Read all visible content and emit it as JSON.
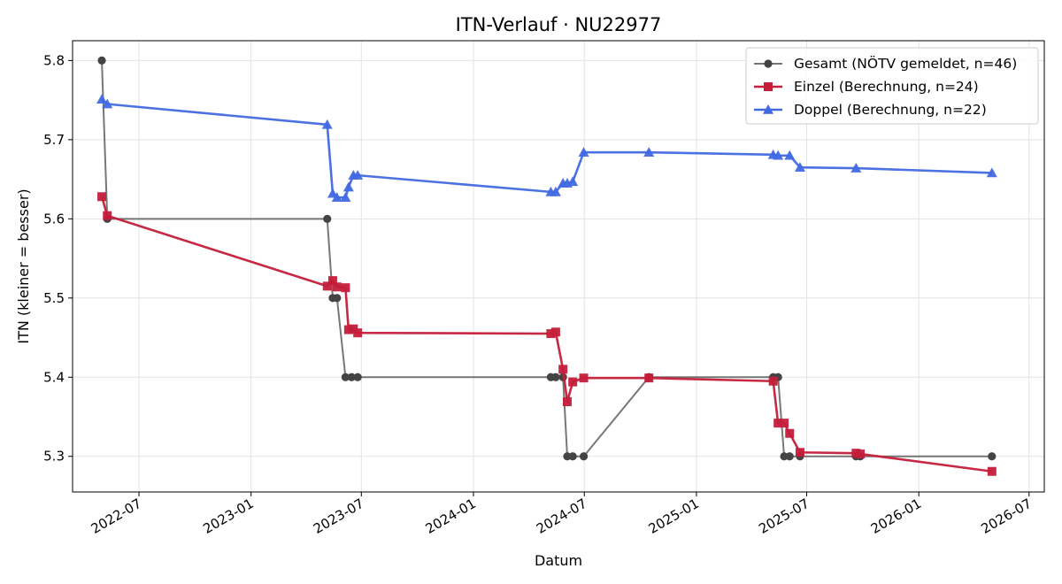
{
  "chart_data": {
    "type": "line",
    "title": "ITN-Verlauf · NU22977",
    "xlabel": "Datum",
    "ylabel": "ITN  (kleiner = besser)",
    "x_ticks": [
      "2022-07",
      "2023-01",
      "2023-07",
      "2024-01",
      "2024-07",
      "2025-01",
      "2025-07",
      "2026-01",
      "2026-07"
    ],
    "y_ticks": [
      "5.3",
      "5.4",
      "5.5",
      "5.6",
      "5.7",
      "5.8"
    ],
    "xlim": [
      "2022-03-14",
      "2026-07-26"
    ],
    "ylim": [
      5.255,
      5.825
    ],
    "grid": true,
    "legend_position": "top-right",
    "series": [
      {
        "name": "Gesamt (NÖTV gemeldet, n=46)",
        "color": "#555555",
        "marker": "circle",
        "points": [
          [
            "2022-05-01",
            5.8
          ],
          [
            "2022-05-10",
            5.6
          ],
          [
            "2023-05-06",
            5.6
          ],
          [
            "2023-05-15",
            5.5
          ],
          [
            "2023-05-22",
            5.5
          ],
          [
            "2023-06-05",
            5.4
          ],
          [
            "2023-06-15",
            5.4
          ],
          [
            "2023-06-25",
            5.4
          ],
          [
            "2024-05-07",
            5.4
          ],
          [
            "2024-05-15",
            5.4
          ],
          [
            "2024-05-27",
            5.4
          ],
          [
            "2024-06-03",
            5.3
          ],
          [
            "2024-06-12",
            5.3
          ],
          [
            "2024-06-30",
            5.3
          ],
          [
            "2024-10-15",
            5.4
          ],
          [
            "2025-05-07",
            5.4
          ],
          [
            "2025-05-15",
            5.4
          ],
          [
            "2025-05-25",
            5.3
          ],
          [
            "2025-06-03",
            5.3
          ],
          [
            "2025-06-20",
            5.3
          ],
          [
            "2025-09-20",
            5.3
          ],
          [
            "2025-09-27",
            5.3
          ],
          [
            "2026-05-01",
            5.3
          ]
        ]
      },
      {
        "name": "Einzel (Berechnung, n=24)",
        "color": "#c41e3a",
        "marker": "square",
        "points": [
          [
            "2022-05-01",
            5.628
          ],
          [
            "2022-05-10",
            5.604
          ],
          [
            "2023-05-06",
            5.515
          ],
          [
            "2023-05-15",
            5.522
          ],
          [
            "2023-05-22",
            5.514
          ],
          [
            "2023-06-05",
            5.513
          ],
          [
            "2023-06-10",
            5.46
          ],
          [
            "2023-06-18",
            5.461
          ],
          [
            "2023-06-25",
            5.456
          ],
          [
            "2024-05-07",
            5.455
          ],
          [
            "2024-05-15",
            5.457
          ],
          [
            "2024-05-27",
            5.41
          ],
          [
            "2024-06-03",
            5.369
          ],
          [
            "2024-06-12",
            5.394
          ],
          [
            "2024-06-30",
            5.399
          ],
          [
            "2024-10-15",
            5.399
          ],
          [
            "2025-05-07",
            5.395
          ],
          [
            "2025-05-15",
            5.342
          ],
          [
            "2025-05-25",
            5.342
          ],
          [
            "2025-06-03",
            5.329
          ],
          [
            "2025-06-20",
            5.305
          ],
          [
            "2025-09-20",
            5.304
          ],
          [
            "2025-09-27",
            5.303
          ],
          [
            "2026-05-01",
            5.281
          ]
        ]
      },
      {
        "name": "Doppel (Berechnung, n=22)",
        "color": "#4169e1",
        "marker": "triangle",
        "points": [
          [
            "2022-05-01",
            5.751
          ],
          [
            "2022-05-10",
            5.745
          ],
          [
            "2023-05-06",
            5.719
          ],
          [
            "2023-05-15",
            5.632
          ],
          [
            "2023-05-22",
            5.627
          ],
          [
            "2023-06-05",
            5.627
          ],
          [
            "2023-06-10",
            5.64
          ],
          [
            "2023-06-18",
            5.655
          ],
          [
            "2023-06-25",
            5.655
          ],
          [
            "2024-05-07",
            5.634
          ],
          [
            "2024-05-15",
            5.634
          ],
          [
            "2024-05-27",
            5.645
          ],
          [
            "2024-06-03",
            5.645
          ],
          [
            "2024-06-12",
            5.647
          ],
          [
            "2024-06-30",
            5.684
          ],
          [
            "2024-10-15",
            5.684
          ],
          [
            "2025-05-07",
            5.681
          ],
          [
            "2025-05-15",
            5.68
          ],
          [
            "2025-06-03",
            5.68
          ],
          [
            "2025-06-20",
            5.665
          ],
          [
            "2025-09-20",
            5.664
          ],
          [
            "2026-05-01",
            5.658
          ]
        ]
      }
    ]
  }
}
